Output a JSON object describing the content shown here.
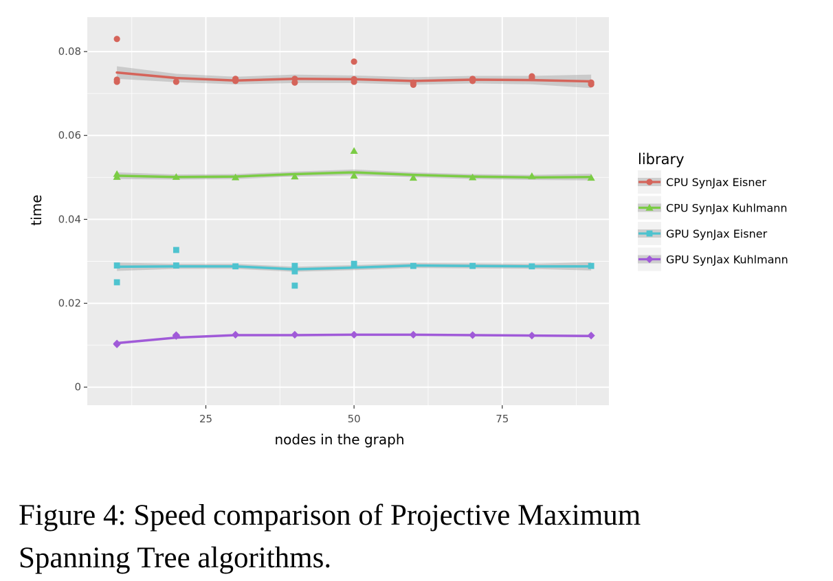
{
  "chart_data": {
    "type": "scatter",
    "xlabel": "nodes in the graph",
    "ylabel": "time",
    "xlim": [
      5,
      93
    ],
    "ylim": [
      -0.0043,
      0.0882
    ],
    "xticks": [
      25,
      50,
      75
    ],
    "xtick_labels": [
      "25",
      "50",
      "75"
    ],
    "yticks": [
      0,
      0.02,
      0.04,
      0.06,
      0.08
    ],
    "ytick_labels": [
      "0",
      "0.02",
      "0.04",
      "0.06",
      "0.08"
    ],
    "grid": true,
    "legend": {
      "title": "library",
      "placement": "right"
    },
    "series": [
      {
        "name": "CPU SynJax Eisner",
        "color": "#d5645a",
        "marker": "circle",
        "points": [
          [
            10,
            0.083
          ],
          [
            10,
            0.0733
          ],
          [
            10,
            0.0728
          ],
          [
            20,
            0.0728
          ],
          [
            30,
            0.0735
          ],
          [
            30,
            0.073
          ],
          [
            40,
            0.0735
          ],
          [
            40,
            0.0726
          ],
          [
            50,
            0.0776
          ],
          [
            50,
            0.0734
          ],
          [
            50,
            0.0728
          ],
          [
            60,
            0.0726
          ],
          [
            60,
            0.0721
          ],
          [
            70,
            0.0735
          ],
          [
            70,
            0.073
          ],
          [
            80,
            0.0741
          ],
          [
            80,
            0.0737
          ],
          [
            90,
            0.0726
          ],
          [
            90,
            0.0722
          ]
        ],
        "trend": [
          [
            10,
            0.075
          ],
          [
            20,
            0.0737
          ],
          [
            30,
            0.0731
          ],
          [
            40,
            0.0735
          ],
          [
            50,
            0.0734
          ],
          [
            60,
            0.073
          ],
          [
            70,
            0.0733
          ],
          [
            80,
            0.0732
          ],
          [
            90,
            0.0729
          ]
        ],
        "band": [
          0.0015,
          0.001,
          0.0009,
          0.001,
          0.0009,
          0.0009,
          0.0009,
          0.001,
          0.0016
        ]
      },
      {
        "name": "CPU SynJax Kuhlmann",
        "color": "#7bcc45",
        "marker": "triangle",
        "points": [
          [
            10,
            0.0508
          ],
          [
            10,
            0.0501
          ],
          [
            20,
            0.0501
          ],
          [
            30,
            0.05
          ],
          [
            40,
            0.0502
          ],
          [
            50,
            0.0563
          ],
          [
            50,
            0.0504
          ],
          [
            60,
            0.0499
          ],
          [
            70,
            0.05
          ],
          [
            80,
            0.0503
          ],
          [
            90,
            0.0499
          ]
        ],
        "trend": [
          [
            10,
            0.0504
          ],
          [
            20,
            0.0501
          ],
          [
            30,
            0.0502
          ],
          [
            40,
            0.0508
          ],
          [
            50,
            0.0512
          ],
          [
            60,
            0.0506
          ],
          [
            70,
            0.0502
          ],
          [
            80,
            0.05
          ],
          [
            90,
            0.0501
          ]
        ],
        "band": [
          0.0008,
          0.0006,
          0.0006,
          0.0006,
          0.0007,
          0.0006,
          0.0006,
          0.0006,
          0.0008
        ]
      },
      {
        "name": "GPU SynJax Eisner",
        "color": "#4ec3cf",
        "marker": "square",
        "points": [
          [
            10,
            0.029
          ],
          [
            10,
            0.025
          ],
          [
            20,
            0.0327
          ],
          [
            20,
            0.029
          ],
          [
            30,
            0.0288
          ],
          [
            40,
            0.0289
          ],
          [
            40,
            0.0276
          ],
          [
            40,
            0.0242
          ],
          [
            50,
            0.0294
          ],
          [
            60,
            0.0289
          ],
          [
            70,
            0.0289
          ],
          [
            80,
            0.0288
          ],
          [
            90,
            0.0289
          ]
        ],
        "trend": [
          [
            10,
            0.0287
          ],
          [
            20,
            0.0288
          ],
          [
            30,
            0.0288
          ],
          [
            40,
            0.0281
          ],
          [
            50,
            0.0285
          ],
          [
            60,
            0.029
          ],
          [
            70,
            0.0289
          ],
          [
            80,
            0.0288
          ],
          [
            90,
            0.0288
          ]
        ],
        "band": [
          0.001,
          0.0006,
          0.0006,
          0.0006,
          0.0006,
          0.0006,
          0.0006,
          0.0006,
          0.001
        ]
      },
      {
        "name": "GPU SynJax Kuhlmann",
        "color": "#a05ad8",
        "marker": "diamond",
        "points": [
          [
            10,
            0.0104
          ],
          [
            10,
            0.0102
          ],
          [
            20,
            0.0124
          ],
          [
            20,
            0.0122
          ],
          [
            30,
            0.0125
          ],
          [
            40,
            0.0125
          ],
          [
            50,
            0.0125
          ],
          [
            60,
            0.0125
          ],
          [
            70,
            0.0124
          ],
          [
            80,
            0.0123
          ],
          [
            90,
            0.0123
          ]
        ],
        "trend": [
          [
            10,
            0.0105
          ],
          [
            20,
            0.0118
          ],
          [
            30,
            0.0124
          ],
          [
            40,
            0.0124
          ],
          [
            50,
            0.0125
          ],
          [
            60,
            0.0125
          ],
          [
            70,
            0.0124
          ],
          [
            80,
            0.0123
          ],
          [
            90,
            0.0122
          ]
        ],
        "band": [
          0.0003,
          0.0002,
          0.0002,
          0.0002,
          0.0002,
          0.0002,
          0.0002,
          0.0002,
          0.0003
        ]
      }
    ]
  },
  "caption": {
    "line1": "Figure 4:  Speed comparison of Projective Maximum",
    "line2": "Spanning Tree algorithms."
  }
}
